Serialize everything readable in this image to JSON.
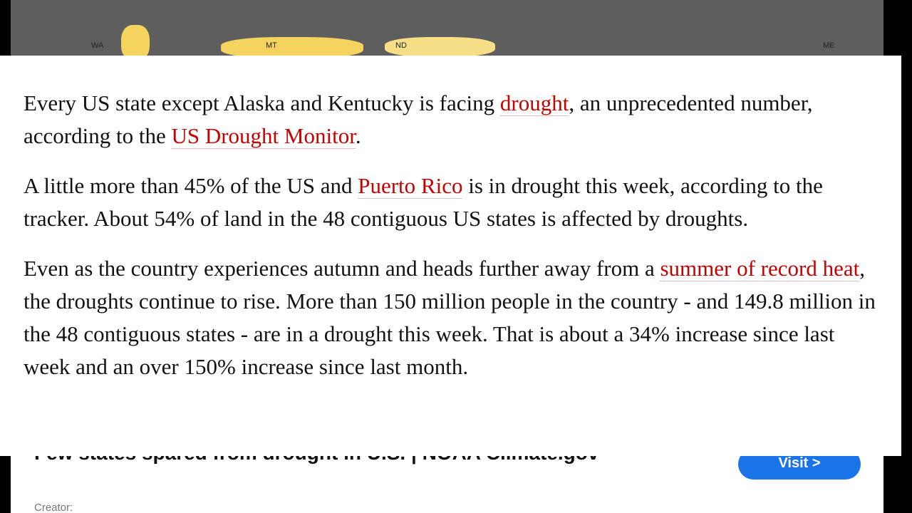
{
  "map": {
    "labels": [
      "WA",
      "MT",
      "ND",
      "ME"
    ]
  },
  "article": {
    "paragraphs": [
      [
        {
          "text": "Every US state except Alaska and Kentucky is facing "
        },
        {
          "link": "drought"
        },
        {
          "text": ", an unprecedented number, according to the "
        },
        {
          "link": "US Drought Monitor"
        },
        {
          "text": "."
        }
      ],
      [
        {
          "text": "A little more than 45% of the US and "
        },
        {
          "link": "Puerto Rico"
        },
        {
          "text": " is in drought this week, according to the tracker. About 54% of land in the 48 contiguous US states is affected by droughts."
        }
      ],
      [
        {
          "text": "Even as the country experiences autumn and heads further away from a "
        },
        {
          "link": "summer of record heat"
        },
        {
          "text": ", the droughts continue to rise. More than 150 million people in the country - and 149.8 million in the 48 contiguous states - are in a drought this week. That is about a 34% increase since last week and an over 150% increase since last month."
        }
      ]
    ]
  },
  "source_card": {
    "title": "Few states spared from drought in U.S. | NOAA Climate.gov",
    "button": "Visit >",
    "creator": "Creator:"
  }
}
